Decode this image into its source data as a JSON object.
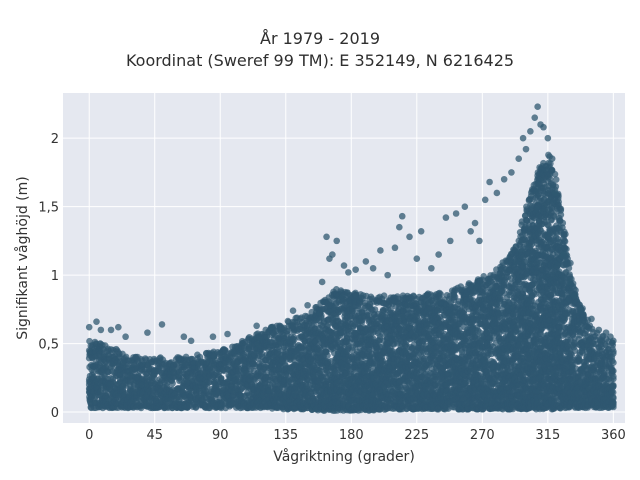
{
  "chart_data": {
    "type": "scatter",
    "title": "År 1979 - 2019",
    "subtitle": "Koordinat (Sweref 99 TM): E 352149, N 6216425",
    "xlabel": "Vågriktning (grader)",
    "ylabel": "Signifikant våghöjd (m)",
    "xlim": [
      -18,
      368
    ],
    "ylim": [
      -0.08,
      2.33
    ],
    "xticks": [
      0,
      45,
      90,
      135,
      180,
      225,
      270,
      315,
      360
    ],
    "xtick_labels": [
      "0",
      "45",
      "90",
      "135",
      "180",
      "225",
      "270",
      "315",
      "360"
    ],
    "yticks": [
      0,
      0.5,
      1,
      1.5,
      2
    ],
    "ytick_labels": [
      "0",
      "0,5",
      "1",
      "1,5",
      "2"
    ],
    "grid": true,
    "background_color": "#e5e8f0",
    "marker_color": "#2f5870",
    "envelope": {
      "x": [
        0,
        10,
        20,
        30,
        45,
        60,
        75,
        90,
        105,
        120,
        135,
        150,
        160,
        170,
        180,
        195,
        210,
        225,
        240,
        255,
        270,
        280,
        290,
        295,
        300,
        305,
        310,
        315,
        320,
        325,
        330,
        335,
        340,
        345,
        350,
        360
      ],
      "y_min": [
        0.03,
        0.03,
        0.03,
        0.03,
        0.03,
        0.03,
        0.03,
        0.03,
        0.03,
        0.03,
        0.02,
        0.02,
        0.01,
        0.01,
        0.01,
        0.01,
        0.02,
        0.02,
        0.02,
        0.02,
        0.02,
        0.02,
        0.02,
        0.02,
        0.02,
        0.02,
        0.02,
        0.02,
        0.02,
        0.03,
        0.03,
        0.03,
        0.03,
        0.03,
        0.03,
        0.03
      ],
      "y_max": [
        0.52,
        0.5,
        0.45,
        0.42,
        0.4,
        0.4,
        0.42,
        0.45,
        0.52,
        0.6,
        0.66,
        0.72,
        0.8,
        0.9,
        0.88,
        0.85,
        0.85,
        0.85,
        0.88,
        0.92,
        1.0,
        1.05,
        1.15,
        1.3,
        1.5,
        1.65,
        1.8,
        1.9,
        1.72,
        1.45,
        1.1,
        0.85,
        0.72,
        0.62,
        0.58,
        0.52
      ]
    },
    "outliers": [
      {
        "x": 0,
        "y": 0.62
      },
      {
        "x": 5,
        "y": 0.66
      },
      {
        "x": 8,
        "y": 0.6
      },
      {
        "x": 15,
        "y": 0.6
      },
      {
        "x": 20,
        "y": 0.62
      },
      {
        "x": 25,
        "y": 0.55
      },
      {
        "x": 40,
        "y": 0.58
      },
      {
        "x": 50,
        "y": 0.64
      },
      {
        "x": 65,
        "y": 0.55
      },
      {
        "x": 70,
        "y": 0.52
      },
      {
        "x": 85,
        "y": 0.55
      },
      {
        "x": 95,
        "y": 0.57
      },
      {
        "x": 115,
        "y": 0.63
      },
      {
        "x": 125,
        "y": 0.62
      },
      {
        "x": 140,
        "y": 0.74
      },
      {
        "x": 150,
        "y": 0.78
      },
      {
        "x": 160,
        "y": 0.95
      },
      {
        "x": 163,
        "y": 1.28
      },
      {
        "x": 165,
        "y": 1.12
      },
      {
        "x": 167,
        "y": 1.15
      },
      {
        "x": 170,
        "y": 1.25
      },
      {
        "x": 175,
        "y": 1.07
      },
      {
        "x": 178,
        "y": 1.02
      },
      {
        "x": 183,
        "y": 1.04
      },
      {
        "x": 190,
        "y": 1.1
      },
      {
        "x": 195,
        "y": 1.05
      },
      {
        "x": 200,
        "y": 1.18
      },
      {
        "x": 205,
        "y": 1.0
      },
      {
        "x": 210,
        "y": 1.2
      },
      {
        "x": 213,
        "y": 1.35
      },
      {
        "x": 215,
        "y": 1.43
      },
      {
        "x": 220,
        "y": 1.28
      },
      {
        "x": 225,
        "y": 1.12
      },
      {
        "x": 228,
        "y": 1.32
      },
      {
        "x": 235,
        "y": 1.05
      },
      {
        "x": 240,
        "y": 1.15
      },
      {
        "x": 245,
        "y": 1.42
      },
      {
        "x": 248,
        "y": 1.25
      },
      {
        "x": 252,
        "y": 1.45
      },
      {
        "x": 258,
        "y": 1.5
      },
      {
        "x": 262,
        "y": 1.32
      },
      {
        "x": 265,
        "y": 1.38
      },
      {
        "x": 268,
        "y": 1.25
      },
      {
        "x": 272,
        "y": 1.55
      },
      {
        "x": 275,
        "y": 1.68
      },
      {
        "x": 280,
        "y": 1.6
      },
      {
        "x": 285,
        "y": 1.7
      },
      {
        "x": 290,
        "y": 1.75
      },
      {
        "x": 295,
        "y": 1.85
      },
      {
        "x": 298,
        "y": 2.0
      },
      {
        "x": 300,
        "y": 1.92
      },
      {
        "x": 303,
        "y": 2.05
      },
      {
        "x": 306,
        "y": 2.15
      },
      {
        "x": 308,
        "y": 2.23
      },
      {
        "x": 310,
        "y": 2.1
      },
      {
        "x": 312,
        "y": 2.08
      },
      {
        "x": 315,
        "y": 2.0
      },
      {
        "x": 318,
        "y": 1.85
      },
      {
        "x": 320,
        "y": 1.6
      },
      {
        "x": 323,
        "y": 1.35
      },
      {
        "x": 326,
        "y": 1.15
      },
      {
        "x": 330,
        "y": 0.95
      },
      {
        "x": 333,
        "y": 0.85
      },
      {
        "x": 338,
        "y": 0.75
      },
      {
        "x": 345,
        "y": 0.68
      },
      {
        "x": 350,
        "y": 0.6
      },
      {
        "x": 355,
        "y": 0.58
      },
      {
        "x": 358,
        "y": 0.55
      },
      {
        "x": 360,
        "y": 0.52
      }
    ]
  }
}
